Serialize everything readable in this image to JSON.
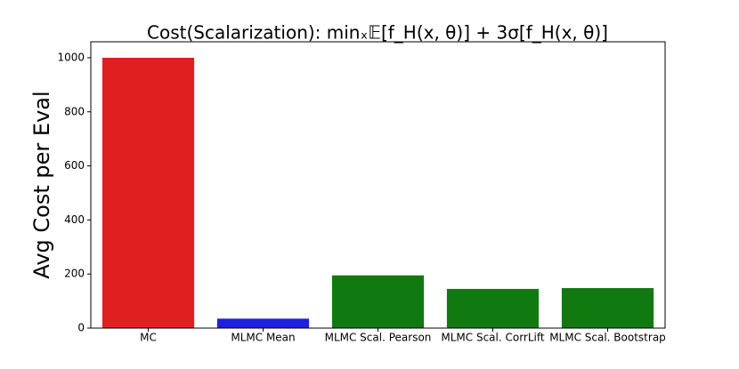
{
  "chart_data": {
    "type": "bar",
    "title": "Cost(Scalarization): minₓ𝔼[f_H(x, θ)] + 3σ[f_H(x, θ)]",
    "y_label": "Avg Cost per Eval",
    "categories": [
      "MC",
      "MLMC Mean",
      "MLMC Scal. Pearson",
      "MLMC Scal. CorrLift",
      "MLMC Scal. Bootstrap"
    ],
    "values": [
      1000,
      35,
      195,
      145,
      148
    ],
    "colors": [
      "#e02020",
      "#2020e0",
      "#107a10",
      "#107a10",
      "#107a10"
    ],
    "ylim": [
      0,
      1059
    ],
    "yticks": [
      0,
      200,
      400,
      600,
      800,
      1000
    ],
    "grid": false
  }
}
